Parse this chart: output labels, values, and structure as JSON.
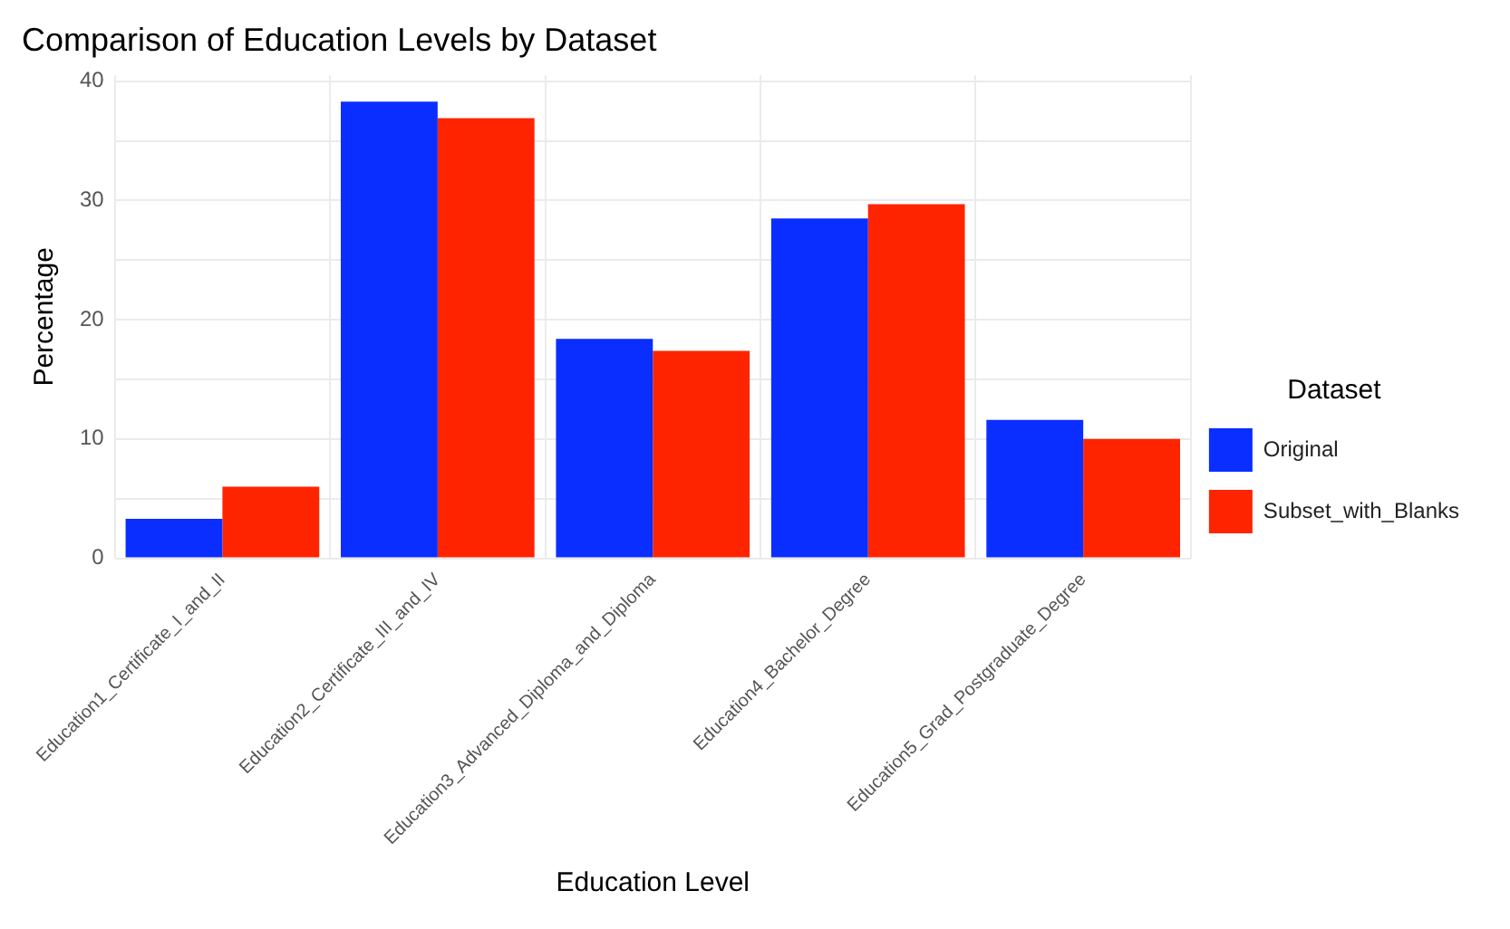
{
  "chart_data": {
    "type": "bar",
    "title": "Comparison of Education Levels by Dataset",
    "xlabel": "Education Level",
    "ylabel": "Percentage",
    "legend_title": "Dataset",
    "categories": [
      "Education1_Certificate_I_and_II",
      "Education2_Certificate_III_and_IV",
      "Education3_Advanced_Diploma_and_Diploma",
      "Education4_Bachelor_Degree",
      "Education5_Grad_Postgraduate_Degree"
    ],
    "series": [
      {
        "name": "Original",
        "color": "#0a2eff",
        "values": [
          3.3,
          38.3,
          18.4,
          28.5,
          11.6
        ]
      },
      {
        "name": "Subset_with_Blanks",
        "color": "#ff2400",
        "values": [
          6.0,
          36.9,
          17.4,
          29.7,
          10.0
        ]
      }
    ],
    "ylim": [
      0,
      40.5
    ],
    "yticks": [
      0,
      {
        "value": 5,
        "label": null
      },
      10,
      {
        "value": 15,
        "label": null
      },
      20,
      {
        "value": 25,
        "label": null
      },
      30,
      {
        "value": 35,
        "label": null
      },
      40
    ],
    "grid": true,
    "legend": "right"
  }
}
